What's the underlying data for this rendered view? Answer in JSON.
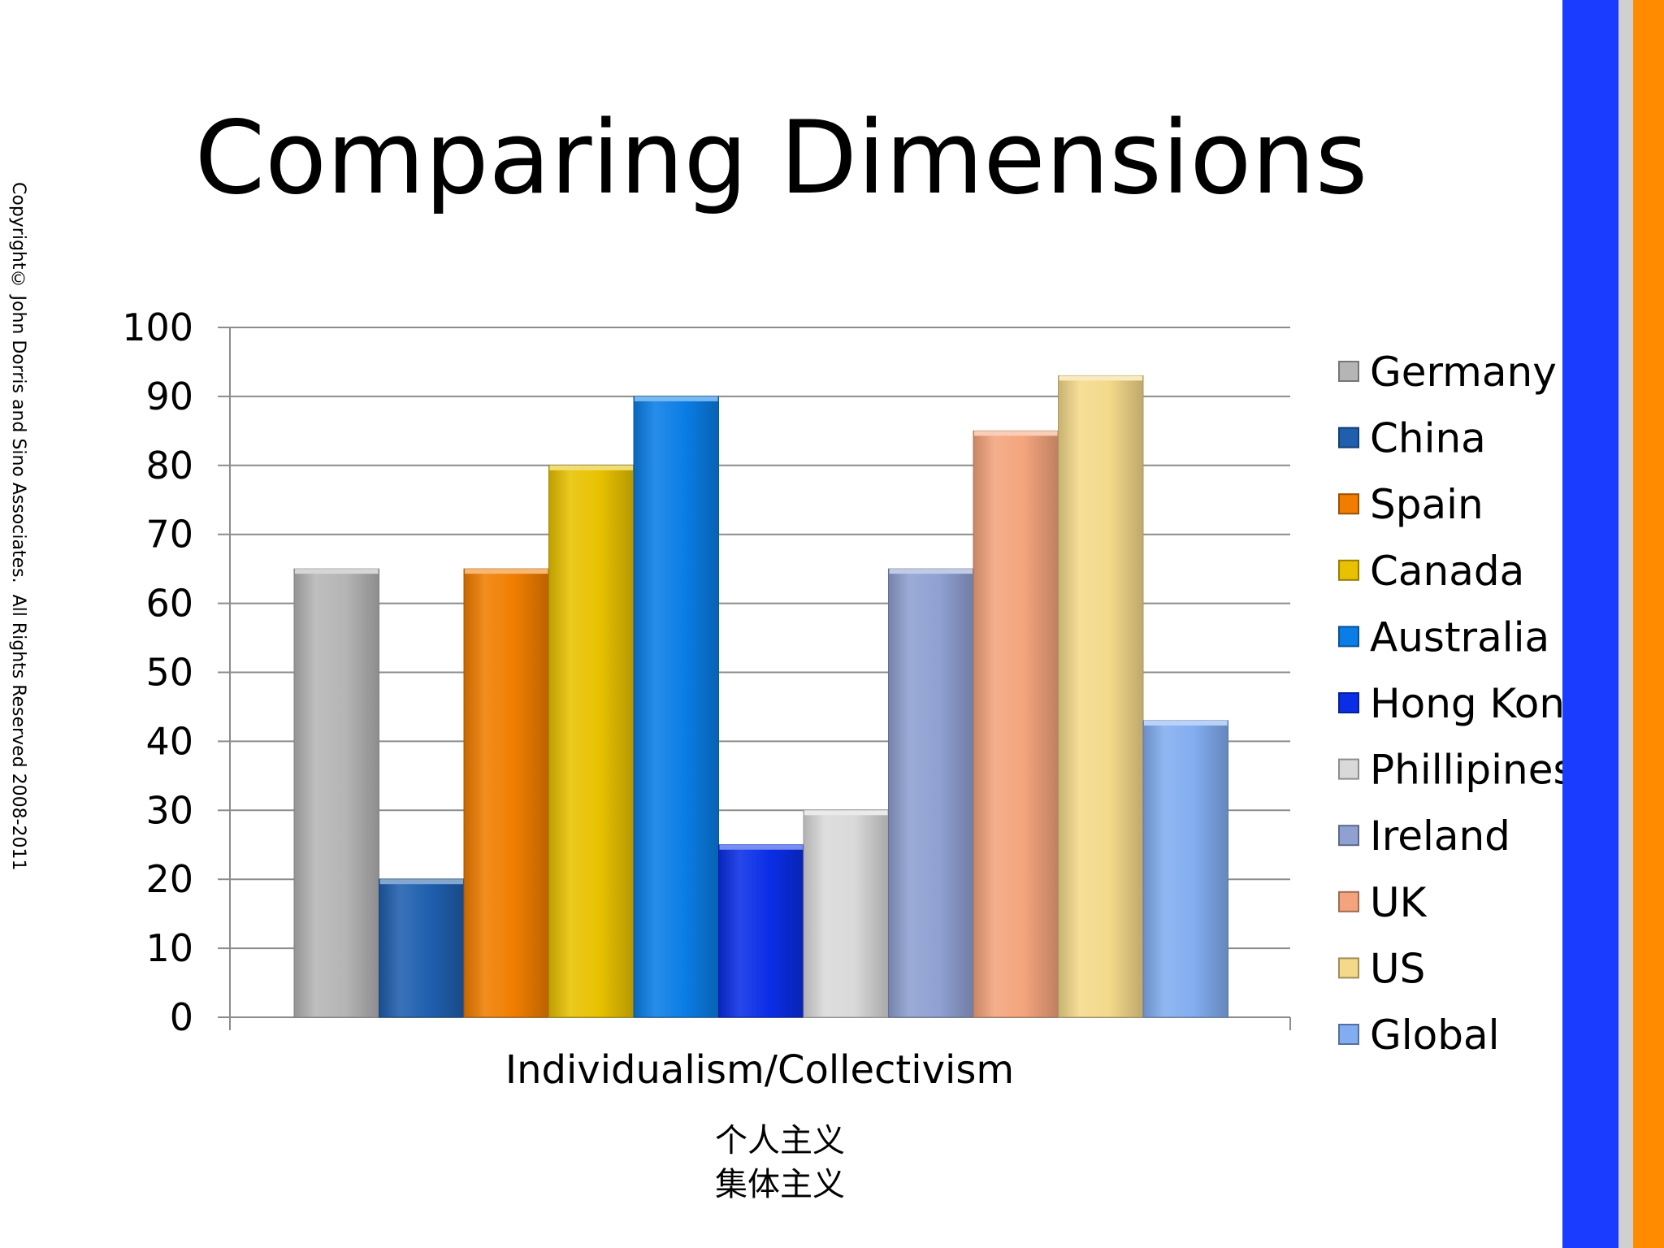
{
  "page": {
    "title": "Comparing Dimensions",
    "copyright": "Copyright© John Dorris and Sino Associates.  All Rights Reserved 2008-2011",
    "subtitle_line1": "个人主义",
    "subtitle_line2": "集体主义",
    "accent_colors": {
      "blue_stripe": "#1a3cff",
      "gray_stripe": "#d0d0d0",
      "orange_stripe": "#ff8c00"
    }
  },
  "chart_data": {
    "type": "bar",
    "title": "",
    "xlabel": "",
    "ylabel": "",
    "categories": [
      "Individualism/Collectivism"
    ],
    "ylim": [
      0,
      100
    ],
    "yticks": [
      "0",
      "10",
      "20",
      "30",
      "40",
      "50",
      "60",
      "70",
      "80",
      "90",
      "100"
    ],
    "grid": true,
    "legend": "right",
    "series": [
      {
        "name": "Germany",
        "values": [
          65
        ],
        "color": "#b5b5b5"
      },
      {
        "name": "China",
        "values": [
          20
        ],
        "color": "#1f5fae"
      },
      {
        "name": "Spain",
        "values": [
          65
        ],
        "color": "#f07d00"
      },
      {
        "name": "Canada",
        "values": [
          80
        ],
        "color": "#e8c200"
      },
      {
        "name": "Australia",
        "values": [
          90
        ],
        "color": "#0a7de6"
      },
      {
        "name": "Hong Kong",
        "values": [
          25
        ],
        "color": "#0a2ee6"
      },
      {
        "name": "Phillipines",
        "values": [
          30
        ],
        "color": "#d9d9d9"
      },
      {
        "name": "Ireland",
        "values": [
          65
        ],
        "color": "#8fa0d2"
      },
      {
        "name": "UK",
        "values": [
          85
        ],
        "color": "#f4a47c"
      },
      {
        "name": "US",
        "values": [
          93
        ],
        "color": "#f4d98a"
      },
      {
        "name": "Global",
        "values": [
          43
        ],
        "color": "#82adf0"
      }
    ]
  }
}
